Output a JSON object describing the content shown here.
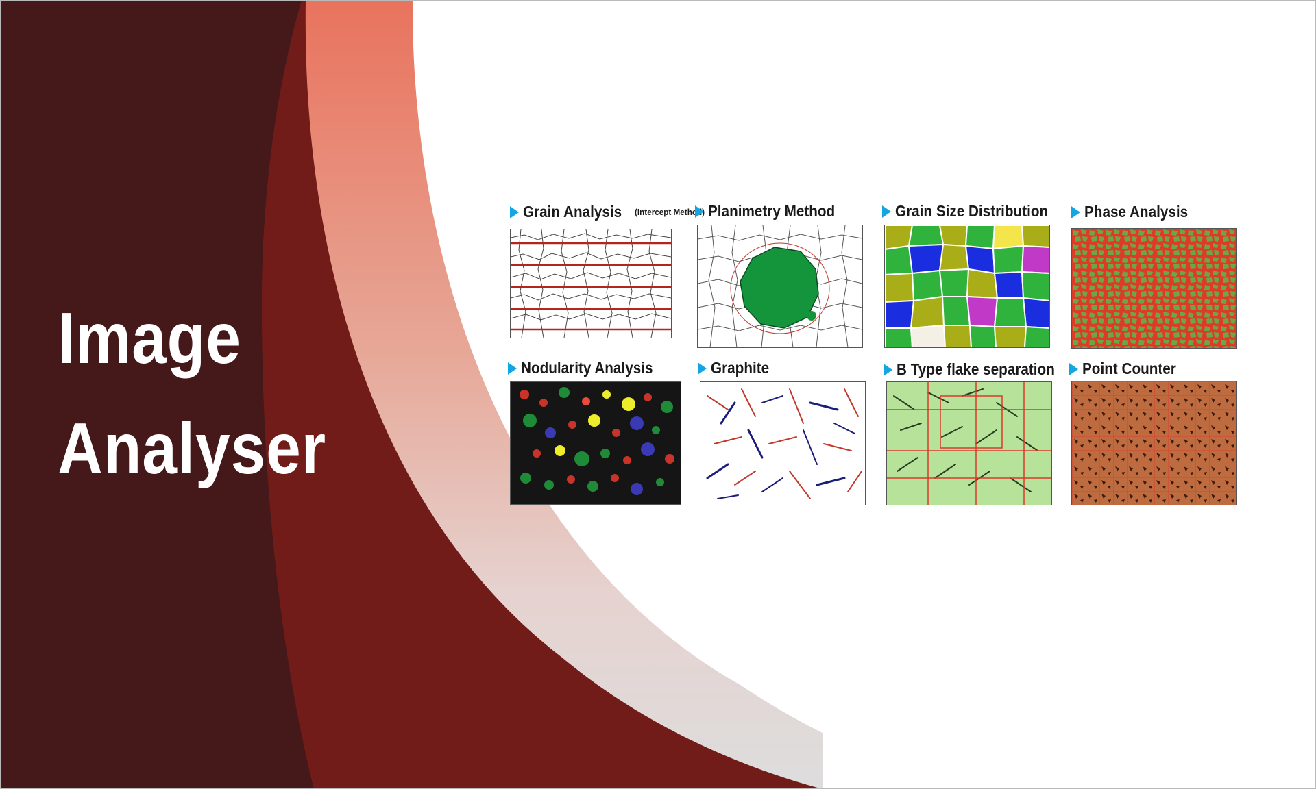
{
  "title": {
    "line1": "Image",
    "line2": "Analyser"
  },
  "colors": {
    "dark_maroon": "#45181a",
    "red_maroon": "#711c18",
    "salmon": "#e8735d",
    "accent_arrow": "#13a6e3"
  },
  "cards": [
    {
      "label": "Grain Analysis",
      "sublabel": "(Intercept Method)",
      "icon": "grain-intercept-micrograph"
    },
    {
      "label": "Planimetry Method",
      "sublabel": "",
      "icon": "planimetry-micrograph"
    },
    {
      "label": "Grain Size Distribution",
      "sublabel": "",
      "icon": "grain-size-distribution-micrograph"
    },
    {
      "label": "Phase Analysis",
      "sublabel": "",
      "icon": "phase-analysis-micrograph"
    },
    {
      "label": "Nodularity Analysis",
      "sublabel": "",
      "icon": "nodularity-micrograph"
    },
    {
      "label": "Graphite",
      "sublabel": "",
      "icon": "graphite-micrograph"
    },
    {
      "label": "B Type flake separation",
      "sublabel": "",
      "icon": "b-type-flake-micrograph"
    },
    {
      "label": "Point Counter",
      "sublabel": "",
      "icon": "point-counter-micrograph"
    }
  ]
}
